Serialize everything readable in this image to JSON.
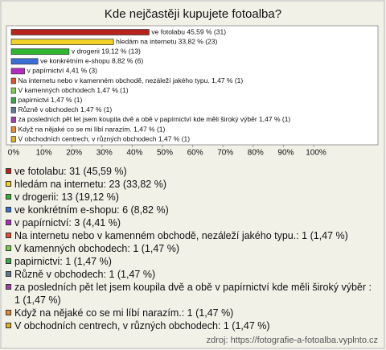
{
  "chart_data": {
    "type": "bar",
    "orientation": "horizontal",
    "title": "Kde nejčastěji kupujete fotoalba?",
    "categories": [
      "ve fotolabu",
      "hledám na internetu",
      "v drogerii",
      "ve konkrétním e-shopu",
      "v papírnictví",
      "Na internetu nebo v kamenném obchodě, nezáleží jakého typu.",
      "V kamenných obchodech",
      "papirnictvi",
      "Různě v obchodech",
      "za posledních pět let jsem koupila dvě a obě v papírnictví kde měli široký výběr",
      "Když na nějaké co se mi líbí narazím.",
      "V obchodních centrech, v různých obchodech"
    ],
    "values": [
      45.59,
      33.82,
      19.12,
      8.82,
      4.41,
      1.47,
      1.47,
      1.47,
      1.47,
      1.47,
      1.47,
      1.47
    ],
    "value_labels": [
      "ve fotolabu 45,59 % (31)",
      "hledám na internetu 33,82 % (23)",
      "v drogerii 19,12 % (13)",
      "ve konkrétním e-shopu 8,82 % (6)",
      "v papírnictví 4,41 % (3)",
      "Na internetu nebo v kamenném obchodě, nezáleží jakého typu. 1,47 % (1)",
      "V kamenných obchodech 1,47 % (1)",
      "papirnictvi 1,47 % (1)",
      "Různě v obchodech 1,47 % (1)",
      "za posledních pět let jsem koupila dvě a obě v papírnictví kde měli široký výběr  1,47 % (1)",
      "Když na nějaké co se mi líbí narazím. 1,47 % (1)",
      "V obchodních centrech, v různých obchodech 1,47 % (1)"
    ],
    "legend_labels": [
      "ve fotolabu: 31 (45,59 %)",
      "hledám na internetu: 23 (33,82 %)",
      "v drogerii: 13 (19,12 %)",
      "ve konkrétním e-shopu: 6 (8,82 %)",
      "v papírnictví: 3 (4,41 %)",
      "Na internetu nebo v kamenném obchodě, nezáleží jakého typu.: 1 (1,47 %)",
      "V kamenných obchodech: 1 (1,47 %)",
      "papirnictvi: 1 (1,47 %)",
      "Různě v obchodech: 1 (1,47 %)",
      "za posledních pět let jsem koupila dvě a obě v papírnictví kde měli široký výběr : 1 (1,47 %)",
      "Když na nějaké co se mi líbí narazím.: 1 (1,47 %)",
      "V obchodních centrech, v různých obchodech: 1 (1,47 %)"
    ],
    "colors": [
      "#b8241c",
      "#f2d02a",
      "#2fb52f",
      "#3b6fd6",
      "#b02cc0",
      "#e0502a",
      "#7ccf4a",
      "#3aa84a",
      "#607890",
      "#a040a8",
      "#e88a30",
      "#e0b020"
    ],
    "xlim": [
      0,
      100
    ],
    "xticks": [
      {
        "value": 0,
        "label": "0%"
      },
      {
        "value": 10,
        "label": "10%"
      },
      {
        "value": 20,
        "label": "20%"
      },
      {
        "value": 30,
        "label": "30%"
      },
      {
        "value": 40,
        "label": "40%"
      },
      {
        "value": 50,
        "label": "50%"
      },
      {
        "value": 60,
        "label": "60%"
      },
      {
        "value": 70,
        "label": "70%"
      },
      {
        "value": 80,
        "label": "80%"
      },
      {
        "value": 90,
        "label": "90%"
      },
      {
        "value": 100,
        "label": "100%"
      }
    ],
    "source": "zdroj: https://fotografie-a-fotoalba.vyplnto.cz"
  }
}
